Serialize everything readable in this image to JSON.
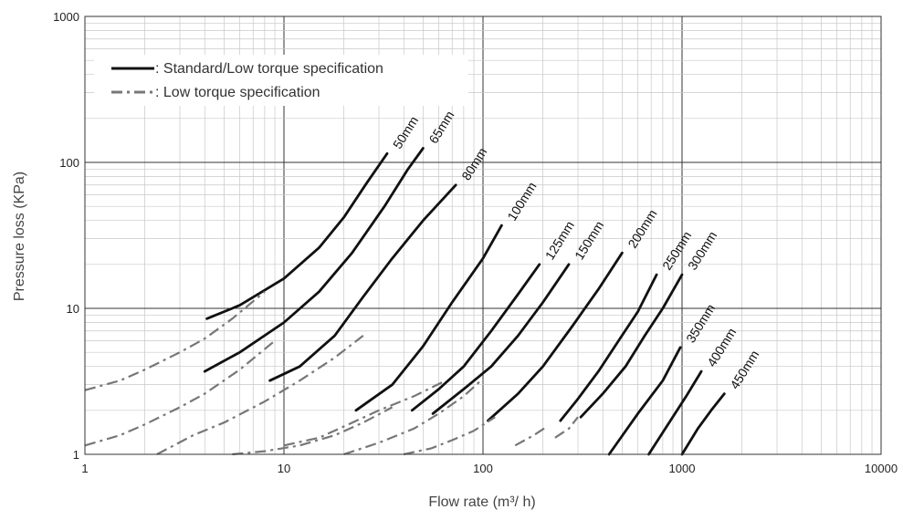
{
  "chart_data": {
    "type": "line",
    "title": "",
    "xlabel": "Flow rate (m³/ h)",
    "ylabel": "Pressure loss (KPa)",
    "xscale": "log",
    "yscale": "log",
    "xlim": [
      1,
      10000
    ],
    "ylim": [
      1,
      1000
    ],
    "x_ticks": [
      "1",
      "10",
      "100",
      "1000",
      "10000"
    ],
    "y_ticks": [
      "1",
      "10",
      "100",
      "1000"
    ],
    "grid": true,
    "legend_position": "top-left",
    "legend": [
      {
        "label": ": Standard/Low torque specification",
        "style": "solid",
        "color": "#111111"
      },
      {
        "label": ": Low torque specification",
        "style": "dash-dot",
        "color": "#777777"
      }
    ],
    "series": [
      {
        "name": "50mm",
        "style": "solid",
        "points": [
          [
            4.1,
            8.5
          ],
          [
            6,
            10.5
          ],
          [
            10,
            16
          ],
          [
            15,
            26
          ],
          [
            20,
            42
          ],
          [
            26,
            72
          ],
          [
            33,
            115
          ]
        ]
      },
      {
        "name": "65mm",
        "style": "solid",
        "points": [
          [
            4,
            3.7
          ],
          [
            6,
            5
          ],
          [
            10,
            8
          ],
          [
            15,
            13
          ],
          [
            22,
            24
          ],
          [
            32,
            50
          ],
          [
            42,
            90
          ],
          [
            50,
            125
          ]
        ]
      },
      {
        "name": "80mm",
        "style": "solid",
        "points": [
          [
            8.5,
            3.2
          ],
          [
            12,
            4
          ],
          [
            18,
            6.5
          ],
          [
            25,
            12
          ],
          [
            35,
            22
          ],
          [
            50,
            40
          ],
          [
            73,
            70
          ]
        ]
      },
      {
        "name": "100mm",
        "style": "solid",
        "points": [
          [
            23,
            2
          ],
          [
            35,
            3
          ],
          [
            50,
            5.5
          ],
          [
            70,
            11
          ],
          [
            100,
            22
          ],
          [
            124,
            37
          ]
        ]
      },
      {
        "name": "125mm",
        "style": "solid",
        "points": [
          [
            44,
            2
          ],
          [
            60,
            2.8
          ],
          [
            80,
            4
          ],
          [
            110,
            7
          ],
          [
            150,
            12.5
          ],
          [
            192,
            20
          ]
        ]
      },
      {
        "name": "150mm",
        "style": "solid",
        "points": [
          [
            56,
            1.9
          ],
          [
            80,
            2.8
          ],
          [
            110,
            4
          ],
          [
            150,
            6.5
          ],
          [
            200,
            11
          ],
          [
            270,
            20
          ]
        ]
      },
      {
        "name": "200mm",
        "style": "solid",
        "points": [
          [
            106,
            1.7
          ],
          [
            150,
            2.6
          ],
          [
            200,
            4
          ],
          [
            280,
            7.5
          ],
          [
            380,
            13.5
          ],
          [
            500,
            24
          ]
        ]
      },
      {
        "name": "250mm",
        "style": "solid",
        "points": [
          [
            245,
            1.7
          ],
          [
            300,
            2.4
          ],
          [
            380,
            3.7
          ],
          [
            480,
            6
          ],
          [
            600,
            9.5
          ],
          [
            745,
            17
          ]
        ]
      },
      {
        "name": "300mm",
        "style": "solid",
        "points": [
          [
            310,
            1.8
          ],
          [
            400,
            2.6
          ],
          [
            520,
            4
          ],
          [
            650,
            6.5
          ],
          [
            800,
            10
          ],
          [
            1000,
            17
          ]
        ]
      },
      {
        "name": "350mm",
        "style": "solid",
        "points": [
          [
            430,
            1
          ],
          [
            600,
            1.9
          ],
          [
            800,
            3.2
          ],
          [
            980,
            5.4
          ]
        ]
      },
      {
        "name": "400mm",
        "style": "solid",
        "points": [
          [
            680,
            1
          ],
          [
            850,
            1.6
          ],
          [
            1050,
            2.5
          ],
          [
            1250,
            3.7
          ]
        ]
      },
      {
        "name": "450mm",
        "style": "solid",
        "points": [
          [
            1000,
            1
          ],
          [
            1200,
            1.5
          ],
          [
            1400,
            2
          ],
          [
            1630,
            2.6
          ]
        ]
      },
      {
        "name": "",
        "style": "dash-dot",
        "points": [
          [
            1,
            2.75
          ],
          [
            1.5,
            3.2
          ],
          [
            2,
            3.8
          ],
          [
            3,
            5
          ],
          [
            4,
            6.2
          ],
          [
            5.5,
            8.5
          ],
          [
            8,
            13
          ]
        ]
      },
      {
        "name": "",
        "style": "dash-dot",
        "points": [
          [
            1,
            1.15
          ],
          [
            1.5,
            1.35
          ],
          [
            2,
            1.6
          ],
          [
            3,
            2.1
          ],
          [
            4,
            2.6
          ],
          [
            6,
            3.8
          ],
          [
            9,
            6
          ]
        ]
      },
      {
        "name": "",
        "style": "dash-dot",
        "points": [
          [
            2.3,
            1
          ],
          [
            3.5,
            1.35
          ],
          [
            5,
            1.65
          ],
          [
            8,
            2.3
          ],
          [
            12,
            3.2
          ],
          [
            18,
            4.6
          ],
          [
            25,
            6.5
          ]
        ]
      },
      {
        "name": "",
        "style": "dash-dot",
        "points": [
          [
            5.5,
            1
          ],
          [
            8,
            1.05
          ],
          [
            12,
            1.15
          ],
          [
            18,
            1.35
          ],
          [
            25,
            1.65
          ],
          [
            35,
            2.1
          ]
        ]
      },
      {
        "name": "",
        "style": "dash-dot",
        "points": [
          [
            10,
            1.15
          ],
          [
            15,
            1.3
          ],
          [
            20,
            1.55
          ],
          [
            30,
            2
          ],
          [
            45,
            2.5
          ],
          [
            65,
            3.2
          ]
        ]
      },
      {
        "name": "",
        "style": "dash-dot",
        "points": [
          [
            20,
            1
          ],
          [
            30,
            1.2
          ],
          [
            45,
            1.5
          ],
          [
            60,
            1.9
          ],
          [
            80,
            2.5
          ],
          [
            100,
            3.3
          ]
        ]
      },
      {
        "name": "",
        "style": "dash-dot",
        "points": [
          [
            40,
            1
          ],
          [
            55,
            1.1
          ],
          [
            70,
            1.25
          ],
          [
            90,
            1.45
          ],
          [
            115,
            1.8
          ]
        ]
      },
      {
        "name": "",
        "style": "dash-dot",
        "points": [
          [
            145,
            1.15
          ],
          [
            180,
            1.35
          ],
          [
            210,
            1.55
          ]
        ]
      },
      {
        "name": "",
        "style": "dash-dot",
        "points": [
          [
            230,
            1.3
          ],
          [
            270,
            1.5
          ],
          [
            300,
            1.8
          ]
        ]
      }
    ]
  }
}
